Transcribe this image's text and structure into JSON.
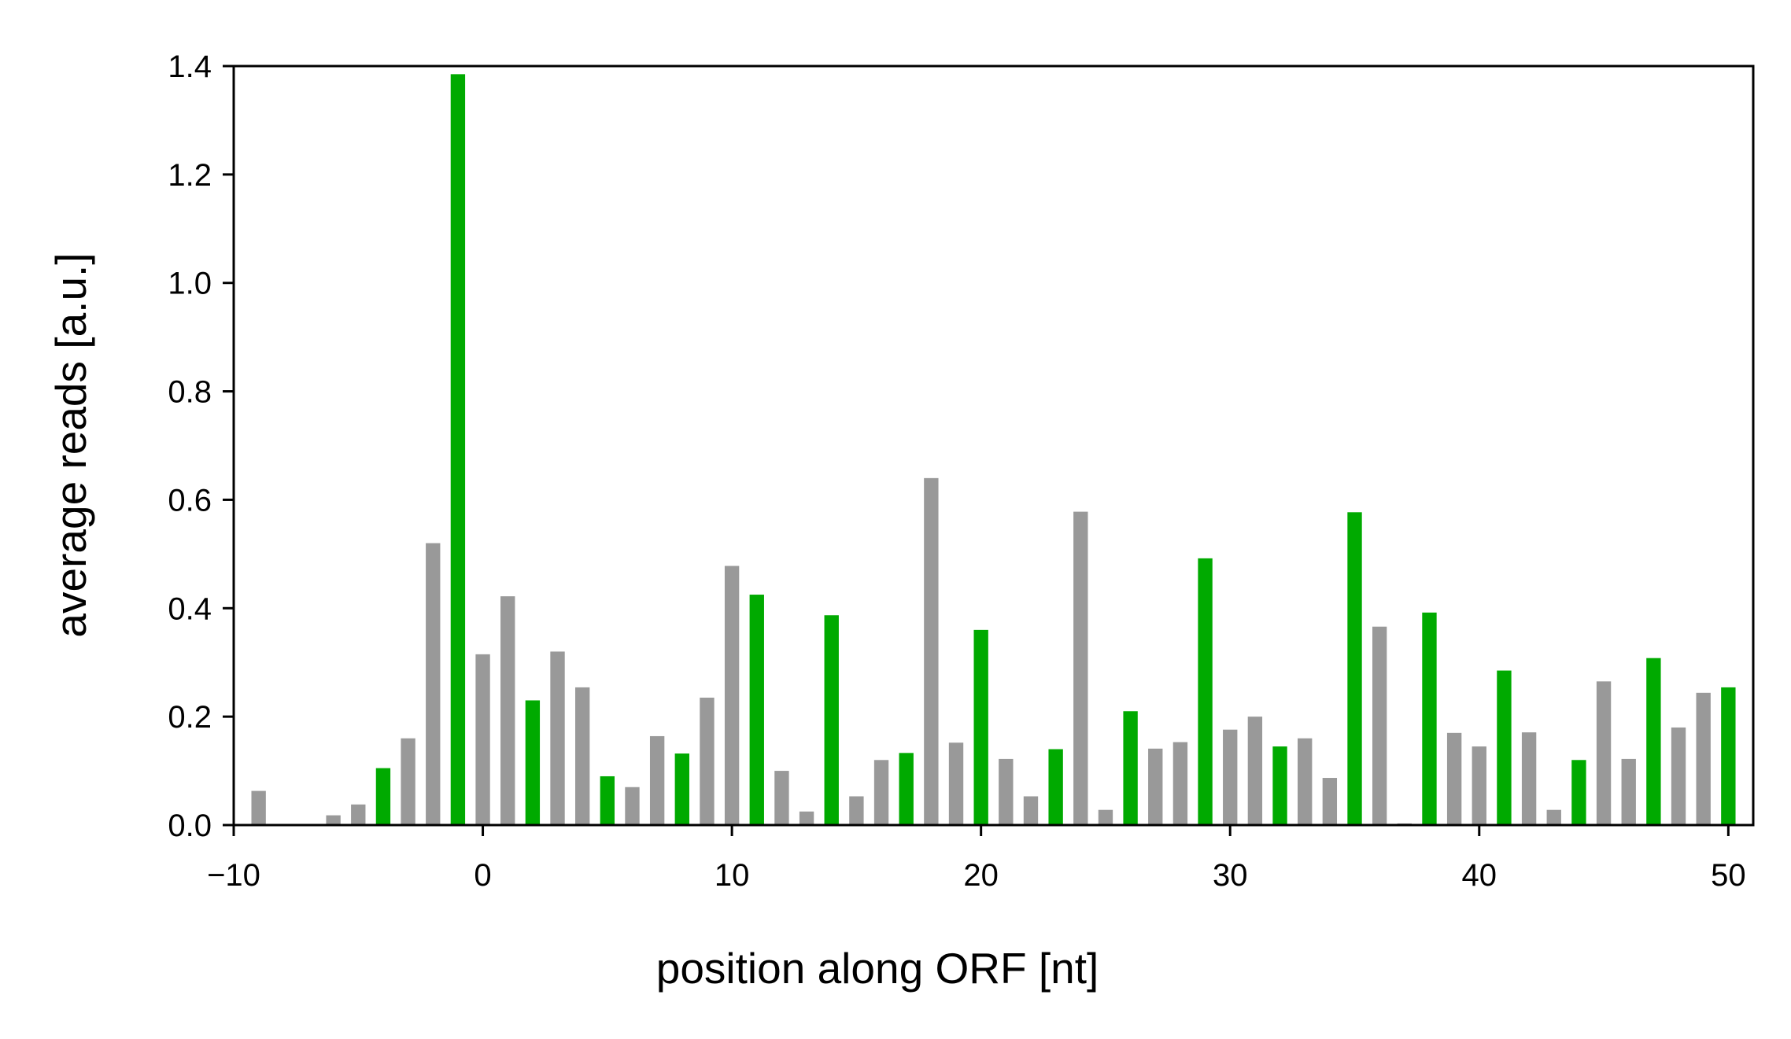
{
  "chart_data": {
    "type": "bar",
    "title": "",
    "xlabel": "position along ORF [nt]",
    "ylabel": "average reads [a.u.]",
    "xlim": [
      -10,
      51
    ],
    "ylim": [
      0,
      1.4
    ],
    "xticks": [
      -10,
      0,
      10,
      20,
      30,
      40,
      50
    ],
    "xtick_labels": [
      "−10",
      "0",
      "10",
      "20",
      "30",
      "40",
      "50"
    ],
    "yticks": [
      0,
      0.2,
      0.4,
      0.6,
      0.8,
      1.0,
      1.2,
      1.4
    ],
    "ytick_labels": [
      "0.0",
      "0.2",
      "0.4",
      "0.6",
      "0.8",
      "1.0",
      "1.2",
      "1.4"
    ],
    "grid": false,
    "colors": {
      "in_frame": "#00aa00",
      "other_frame": "#999999",
      "axis": "#000000"
    },
    "x": [
      -9,
      -8,
      -7,
      -6,
      -5,
      -4,
      -3,
      -2,
      -1,
      0,
      1,
      2,
      3,
      4,
      5,
      6,
      7,
      8,
      9,
      10,
      11,
      12,
      13,
      14,
      15,
      16,
      17,
      18,
      19,
      20,
      21,
      22,
      23,
      24,
      25,
      26,
      27,
      28,
      29,
      30,
      31,
      32,
      33,
      34,
      35,
      36,
      37,
      38,
      39,
      40,
      41,
      42,
      43,
      44,
      45,
      46,
      47,
      48,
      49,
      50
    ],
    "values": [
      0.063,
      0,
      0,
      0.018,
      0.038,
      0.105,
      0.16,
      0.52,
      1.385,
      0.315,
      0.422,
      0.23,
      0.32,
      0.254,
      0.09,
      0.07,
      0.164,
      0.132,
      0.235,
      0.478,
      0.425,
      0.1,
      0.025,
      0.387,
      0.053,
      0.12,
      0.133,
      0.64,
      0.152,
      0.36,
      0.122,
      0.053,
      0.14,
      0.578,
      0.028,
      0.21,
      0.141,
      0.153,
      0.492,
      0.176,
      0.2,
      0.145,
      0.16,
      0.087,
      0.577,
      0.366,
      0.003,
      0.392,
      0.17,
      0.145,
      0.285,
      0.171,
      0.028,
      0.12,
      0.265,
      0.122,
      0.308,
      0.18,
      0.244,
      0.254
    ],
    "in_frame": [
      0,
      0,
      0,
      0,
      0,
      1,
      0,
      0,
      1,
      0,
      0,
      1,
      0,
      0,
      1,
      0,
      0,
      1,
      0,
      0,
      1,
      0,
      0,
      1,
      0,
      0,
      1,
      0,
      0,
      1,
      0,
      0,
      1,
      0,
      0,
      1,
      0,
      0,
      1,
      0,
      0,
      1,
      0,
      0,
      1,
      0,
      0,
      1,
      0,
      0,
      1,
      0,
      0,
      1,
      0,
      0,
      1,
      0,
      0,
      1
    ]
  }
}
